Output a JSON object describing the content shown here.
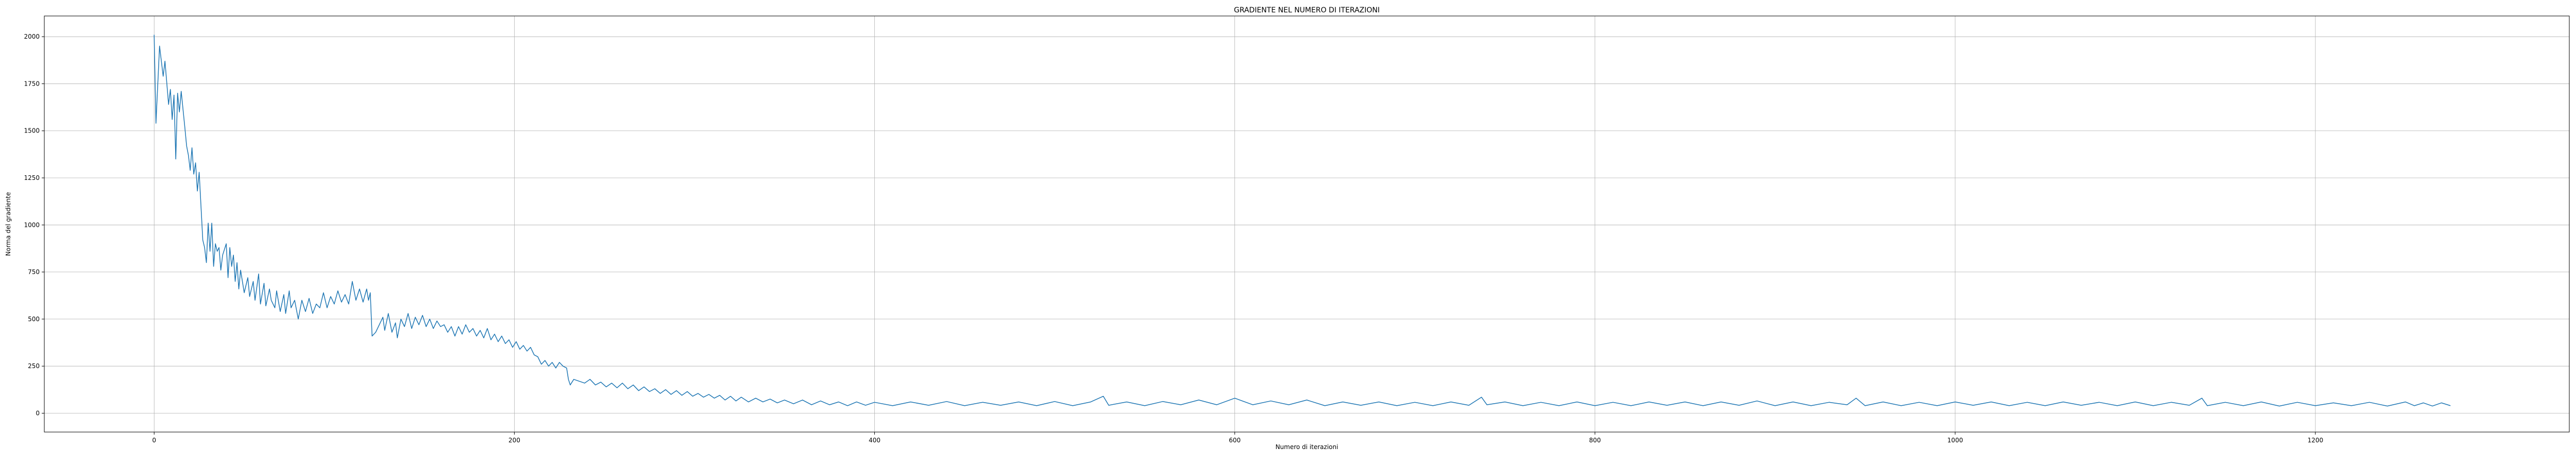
{
  "chart_data": {
    "type": "line",
    "title": "GRADIENTE NEL NUMERO DI ITERAZIONI",
    "xlabel": "Numero di iterazioni",
    "ylabel": "Norma del gradiente",
    "xlim": [
      -61,
      1341
    ],
    "ylim": [
      -100,
      2110
    ],
    "xticks": [
      0,
      200,
      400,
      600,
      800,
      1000,
      1200
    ],
    "yticks": [
      0,
      250,
      500,
      750,
      1000,
      1250,
      1500,
      1750,
      2000
    ],
    "grid": true,
    "legend": "none",
    "series": [
      {
        "color": "#1f77b4",
        "points": [
          [
            0,
            2010
          ],
          [
            1,
            1540
          ],
          [
            3,
            1950
          ],
          [
            5,
            1790
          ],
          [
            6,
            1870
          ],
          [
            8,
            1640
          ],
          [
            9,
            1720
          ],
          [
            10,
            1560
          ],
          [
            11,
            1690
          ],
          [
            12,
            1350
          ],
          [
            13,
            1700
          ],
          [
            14,
            1600
          ],
          [
            15,
            1710
          ],
          [
            17,
            1520
          ],
          [
            18,
            1420
          ],
          [
            19,
            1370
          ],
          [
            20,
            1290
          ],
          [
            21,
            1410
          ],
          [
            22,
            1270
          ],
          [
            23,
            1330
          ],
          [
            24,
            1180
          ],
          [
            25,
            1280
          ],
          [
            26,
            1100
          ],
          [
            27,
            920
          ],
          [
            28,
            880
          ],
          [
            29,
            800
          ],
          [
            30,
            1010
          ],
          [
            31,
            860
          ],
          [
            32,
            1010
          ],
          [
            33,
            780
          ],
          [
            34,
            900
          ],
          [
            35,
            860
          ],
          [
            36,
            880
          ],
          [
            37,
            760
          ],
          [
            38,
            840
          ],
          [
            40,
            900
          ],
          [
            41,
            720
          ],
          [
            42,
            880
          ],
          [
            43,
            780
          ],
          [
            44,
            840
          ],
          [
            45,
            700
          ],
          [
            46,
            800
          ],
          [
            47,
            660
          ],
          [
            48,
            760
          ],
          [
            49,
            700
          ],
          [
            50,
            640
          ],
          [
            52,
            720
          ],
          [
            53,
            620
          ],
          [
            55,
            700
          ],
          [
            56,
            600
          ],
          [
            58,
            740
          ],
          [
            59,
            580
          ],
          [
            61,
            690
          ],
          [
            62,
            570
          ],
          [
            64,
            660
          ],
          [
            65,
            600
          ],
          [
            67,
            560
          ],
          [
            68,
            650
          ],
          [
            70,
            540
          ],
          [
            72,
            630
          ],
          [
            73,
            530
          ],
          [
            75,
            650
          ],
          [
            76,
            560
          ],
          [
            78,
            600
          ],
          [
            80,
            500
          ],
          [
            82,
            600
          ],
          [
            84,
            540
          ],
          [
            86,
            610
          ],
          [
            88,
            530
          ],
          [
            90,
            580
          ],
          [
            92,
            560
          ],
          [
            94,
            640
          ],
          [
            96,
            560
          ],
          [
            98,
            620
          ],
          [
            100,
            580
          ],
          [
            102,
            650
          ],
          [
            104,
            590
          ],
          [
            106,
            630
          ],
          [
            108,
            580
          ],
          [
            110,
            700
          ],
          [
            112,
            600
          ],
          [
            114,
            660
          ],
          [
            116,
            590
          ],
          [
            118,
            660
          ],
          [
            119,
            600
          ],
          [
            120,
            640
          ],
          [
            121,
            410
          ],
          [
            123,
            430
          ],
          [
            125,
            470
          ],
          [
            127,
            510
          ],
          [
            128,
            440
          ],
          [
            130,
            530
          ],
          [
            132,
            430
          ],
          [
            134,
            480
          ],
          [
            135,
            400
          ],
          [
            137,
            500
          ],
          [
            139,
            460
          ],
          [
            141,
            530
          ],
          [
            143,
            450
          ],
          [
            145,
            510
          ],
          [
            147,
            470
          ],
          [
            149,
            520
          ],
          [
            151,
            460
          ],
          [
            153,
            500
          ],
          [
            155,
            450
          ],
          [
            157,
            490
          ],
          [
            159,
            460
          ],
          [
            161,
            470
          ],
          [
            163,
            430
          ],
          [
            165,
            460
          ],
          [
            167,
            410
          ],
          [
            169,
            460
          ],
          [
            171,
            420
          ],
          [
            173,
            470
          ],
          [
            175,
            430
          ],
          [
            177,
            450
          ],
          [
            179,
            410
          ],
          [
            181,
            440
          ],
          [
            183,
            400
          ],
          [
            185,
            450
          ],
          [
            187,
            390
          ],
          [
            189,
            420
          ],
          [
            191,
            380
          ],
          [
            193,
            410
          ],
          [
            195,
            370
          ],
          [
            197,
            390
          ],
          [
            199,
            350
          ],
          [
            201,
            380
          ],
          [
            203,
            340
          ],
          [
            205,
            360
          ],
          [
            207,
            330
          ],
          [
            209,
            350
          ],
          [
            211,
            310
          ],
          [
            213,
            300
          ],
          [
            215,
            260
          ],
          [
            217,
            280
          ],
          [
            219,
            250
          ],
          [
            221,
            270
          ],
          [
            223,
            240
          ],
          [
            225,
            270
          ],
          [
            227,
            250
          ],
          [
            229,
            240
          ],
          [
            230,
            180
          ],
          [
            231,
            150
          ],
          [
            233,
            180
          ],
          [
            236,
            170
          ],
          [
            239,
            160
          ],
          [
            242,
            180
          ],
          [
            245,
            150
          ],
          [
            248,
            165
          ],
          [
            251,
            140
          ],
          [
            254,
            160
          ],
          [
            257,
            135
          ],
          [
            260,
            160
          ],
          [
            263,
            130
          ],
          [
            266,
            150
          ],
          [
            269,
            120
          ],
          [
            272,
            140
          ],
          [
            275,
            115
          ],
          [
            278,
            130
          ],
          [
            281,
            105
          ],
          [
            284,
            125
          ],
          [
            287,
            100
          ],
          [
            290,
            120
          ],
          [
            293,
            95
          ],
          [
            296,
            115
          ],
          [
            299,
            90
          ],
          [
            302,
            105
          ],
          [
            305,
            85
          ],
          [
            308,
            100
          ],
          [
            311,
            80
          ],
          [
            314,
            95
          ],
          [
            317,
            70
          ],
          [
            320,
            90
          ],
          [
            323,
            65
          ],
          [
            326,
            85
          ],
          [
            330,
            60
          ],
          [
            334,
            80
          ],
          [
            338,
            60
          ],
          [
            342,
            75
          ],
          [
            346,
            55
          ],
          [
            350,
            70
          ],
          [
            355,
            50
          ],
          [
            360,
            70
          ],
          [
            365,
            45
          ],
          [
            370,
            65
          ],
          [
            375,
            45
          ],
          [
            380,
            60
          ],
          [
            385,
            40
          ],
          [
            390,
            60
          ],
          [
            395,
            42
          ],
          [
            400,
            58
          ],
          [
            410,
            40
          ],
          [
            420,
            60
          ],
          [
            430,
            42
          ],
          [
            440,
            62
          ],
          [
            450,
            40
          ],
          [
            460,
            58
          ],
          [
            470,
            42
          ],
          [
            480,
            60
          ],
          [
            490,
            40
          ],
          [
            500,
            62
          ],
          [
            510,
            40
          ],
          [
            520,
            60
          ],
          [
            527,
            90
          ],
          [
            530,
            42
          ],
          [
            540,
            60
          ],
          [
            550,
            40
          ],
          [
            560,
            62
          ],
          [
            570,
            45
          ],
          [
            580,
            70
          ],
          [
            590,
            45
          ],
          [
            600,
            80
          ],
          [
            610,
            45
          ],
          [
            620,
            65
          ],
          [
            630,
            45
          ],
          [
            640,
            70
          ],
          [
            650,
            40
          ],
          [
            660,
            60
          ],
          [
            670,
            42
          ],
          [
            680,
            60
          ],
          [
            690,
            40
          ],
          [
            700,
            58
          ],
          [
            710,
            40
          ],
          [
            720,
            60
          ],
          [
            730,
            42
          ],
          [
            737,
            85
          ],
          [
            740,
            45
          ],
          [
            750,
            60
          ],
          [
            760,
            40
          ],
          [
            770,
            58
          ],
          [
            780,
            40
          ],
          [
            790,
            60
          ],
          [
            800,
            40
          ],
          [
            810,
            58
          ],
          [
            820,
            40
          ],
          [
            830,
            60
          ],
          [
            840,
            42
          ],
          [
            850,
            60
          ],
          [
            860,
            40
          ],
          [
            870,
            60
          ],
          [
            880,
            42
          ],
          [
            890,
            65
          ],
          [
            900,
            40
          ],
          [
            910,
            60
          ],
          [
            920,
            40
          ],
          [
            930,
            58
          ],
          [
            940,
            45
          ],
          [
            945,
            80
          ],
          [
            950,
            40
          ],
          [
            960,
            60
          ],
          [
            970,
            40
          ],
          [
            980,
            58
          ],
          [
            990,
            40
          ],
          [
            1000,
            60
          ],
          [
            1010,
            42
          ],
          [
            1020,
            60
          ],
          [
            1030,
            40
          ],
          [
            1040,
            58
          ],
          [
            1050,
            40
          ],
          [
            1060,
            60
          ],
          [
            1070,
            42
          ],
          [
            1080,
            58
          ],
          [
            1090,
            40
          ],
          [
            1100,
            60
          ],
          [
            1110,
            40
          ],
          [
            1120,
            58
          ],
          [
            1130,
            42
          ],
          [
            1137,
            80
          ],
          [
            1140,
            40
          ],
          [
            1150,
            58
          ],
          [
            1160,
            40
          ],
          [
            1170,
            60
          ],
          [
            1180,
            38
          ],
          [
            1190,
            58
          ],
          [
            1200,
            40
          ],
          [
            1210,
            55
          ],
          [
            1220,
            40
          ],
          [
            1230,
            58
          ],
          [
            1240,
            38
          ],
          [
            1250,
            60
          ],
          [
            1255,
            40
          ],
          [
            1260,
            55
          ],
          [
            1265,
            38
          ],
          [
            1270,
            55
          ],
          [
            1275,
            40
          ]
        ]
      }
    ]
  }
}
